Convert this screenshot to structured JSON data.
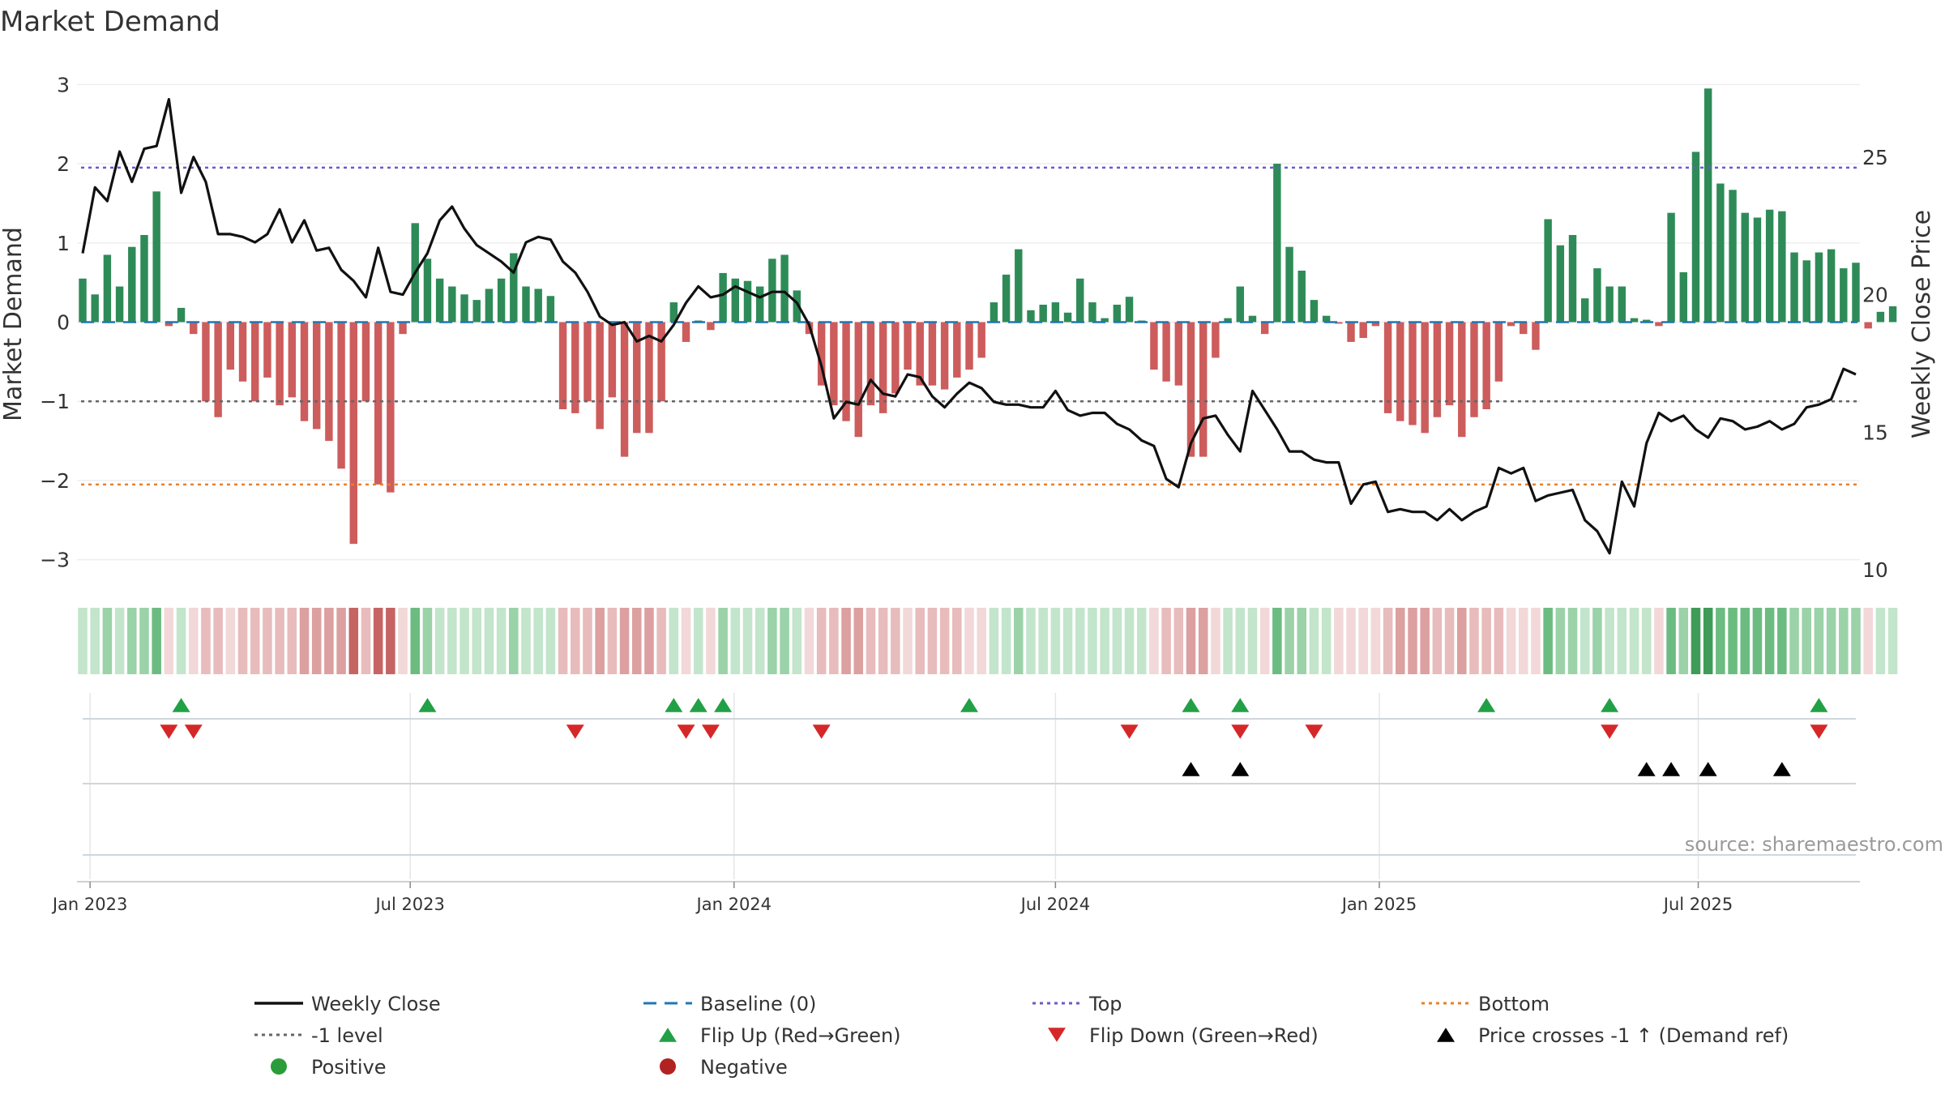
{
  "chart_data": {
    "type": "bar",
    "title": "Market Demand",
    "ylabel": "Market Demand",
    "y2label": "Weekly Close Price",
    "ylim": [
      -3.3,
      3.3
    ],
    "y2lim": [
      9.5,
      28.5
    ],
    "yticks": [
      3,
      2,
      1,
      0,
      -1,
      -2,
      -3
    ],
    "y2ticks": [
      25,
      20,
      15,
      10
    ],
    "ytick_labels": [
      "3",
      "2",
      "1",
      "0",
      "−1",
      "−2",
      "−3"
    ],
    "y2tick_labels": [
      "25",
      "20",
      "15",
      "10"
    ],
    "x_start_week": 0,
    "x_end_week": 144,
    "x_tick_labels": [
      {
        "label": "Jan 2023",
        "week": 0.6
      },
      {
        "label": "Jul 2023",
        "week": 26.6
      },
      {
        "label": "Jan 2024",
        "week": 52.9
      },
      {
        "label": "Jul 2024",
        "week": 79
      },
      {
        "label": "Jan 2025",
        "week": 105.3
      },
      {
        "label": "Jul 2025",
        "week": 131.2
      }
    ],
    "reference_lines": {
      "top": 1.95,
      "baseline": 0,
      "minus1": -1,
      "bottom": -2.05
    },
    "demand": [
      0.55,
      0.35,
      0.85,
      0.45,
      0.95,
      1.1,
      1.65,
      -0.05,
      0.18,
      -0.15,
      -1.0,
      -1.2,
      -0.6,
      -0.75,
      -1.0,
      -0.7,
      -1.05,
      -0.95,
      -1.25,
      -1.35,
      -1.5,
      -1.85,
      -2.8,
      -1.0,
      -2.05,
      -2.15,
      -0.15,
      1.25,
      0.8,
      0.55,
      0.45,
      0.35,
      0.28,
      0.42,
      0.55,
      0.87,
      0.45,
      0.42,
      0.33,
      -1.1,
      -1.15,
      -1.0,
      -1.35,
      -0.95,
      -1.7,
      -1.4,
      -1.4,
      -1.0,
      0.25,
      -0.25,
      0.02,
      -0.1,
      0.62,
      0.55,
      0.52,
      0.45,
      0.8,
      0.85,
      0.4,
      -0.15,
      -0.8,
      -1.05,
      -1.25,
      -1.45,
      -1.05,
      -1.15,
      -0.9,
      -0.6,
      -0.8,
      -0.8,
      -0.85,
      -0.7,
      -0.6,
      -0.45,
      0.25,
      0.6,
      0.92,
      0.15,
      0.22,
      0.25,
      0.12,
      0.55,
      0.25,
      0.05,
      0.22,
      0.32,
      0.02,
      -0.6,
      -0.75,
      -0.8,
      -1.7,
      -1.7,
      -0.45,
      0.05,
      0.45,
      0.08,
      -0.15,
      2.0,
      0.95,
      0.65,
      0.28,
      0.08,
      -0.02,
      -0.25,
      -0.2,
      -0.05,
      -1.15,
      -1.25,
      -1.3,
      -1.4,
      -1.2,
      -1.05,
      -1.45,
      -1.2,
      -1.1,
      -0.75,
      -0.05,
      -0.15,
      -0.35,
      1.3,
      0.97,
      1.1,
      0.3,
      0.68,
      0.45,
      0.45,
      0.05,
      0.03,
      -0.05,
      1.38,
      0.63,
      2.15,
      2.95,
      1.75,
      1.67,
      1.38,
      1.32,
      1.42,
      1.4,
      0.88,
      0.78,
      0.88,
      0.92,
      0.68,
      0.75,
      -0.08,
      0.13,
      0.2
    ],
    "series": [
      {
        "name": "Weekly Close",
        "axis": "right",
        "values": [
          21.5,
          23.9,
          23.4,
          25.2,
          24.1,
          25.3,
          25.4,
          27.1,
          23.7,
          25.0,
          24.1,
          22.2,
          22.2,
          22.1,
          21.9,
          22.2,
          23.1,
          21.9,
          22.7,
          21.6,
          21.7,
          20.9,
          20.5,
          19.9,
          21.7,
          20.1,
          20.0,
          20.8,
          21.5,
          22.7,
          23.2,
          22.4,
          21.8,
          21.5,
          21.2,
          20.8,
          21.9,
          22.1,
          22.0,
          21.2,
          20.8,
          20.1,
          19.2,
          18.9,
          19.0,
          18.3,
          18.5,
          18.3,
          18.9,
          19.7,
          20.3,
          19.9,
          20.0,
          20.3,
          20.1,
          19.9,
          20.1,
          20.1,
          19.7,
          18.9,
          17.4,
          15.5,
          16.1,
          16.0,
          16.9,
          16.4,
          16.3,
          17.1,
          17.0,
          16.3,
          15.9,
          16.4,
          16.8,
          16.6,
          16.1,
          16.0,
          16.0,
          15.9,
          15.9,
          16.5,
          15.8,
          15.6,
          15.7,
          15.7,
          15.3,
          15.1,
          14.7,
          14.5,
          13.3,
          13.0,
          14.6,
          15.5,
          15.6,
          14.9,
          14.3,
          16.5,
          15.8,
          15.1,
          14.3,
          14.3,
          14.0,
          13.9,
          13.9,
          12.4,
          13.1,
          13.2,
          12.1,
          12.2,
          12.1,
          12.1,
          11.8,
          12.2,
          11.8,
          12.1,
          12.3,
          13.7,
          13.5,
          13.7,
          12.5,
          12.7,
          12.8,
          12.9,
          11.8,
          11.4,
          10.6,
          13.2,
          12.3,
          14.6,
          15.7,
          15.4,
          15.6,
          15.1,
          14.8,
          15.5,
          15.4,
          15.1,
          15.2,
          15.4,
          15.1,
          15.3,
          15.9,
          16.0,
          16.2,
          17.3,
          17.1
        ]
      }
    ],
    "flip_up_weeks": [
      8,
      28,
      48,
      50,
      52,
      72,
      90,
      94,
      114,
      124,
      141
    ],
    "flip_down_weeks": [
      7,
      9,
      40,
      49,
      51,
      60,
      85,
      94,
      100,
      124,
      141
    ],
    "price_cross_weeks": [
      90,
      94,
      127,
      129,
      132,
      138
    ],
    "colors": {
      "positive_bar": "#2e8b57",
      "negative_bar": "#cd5c5c",
      "price_line": "#111111",
      "baseline": "#1f77b4",
      "top": "#6a5acd",
      "bottom": "#e8802a",
      "minus1": "#666666",
      "flip_up": "#22a046",
      "flip_down": "#d62728",
      "cross": "#000000",
      "positive_dot": "#2a9d3a",
      "negative_dot": "#b22222"
    },
    "source": "source: sharemaestro.com",
    "legend": [
      {
        "label": "Weekly Close",
        "symbol": "solid-line",
        "color": "#111111"
      },
      {
        "label": "Baseline (0)",
        "symbol": "dash-line",
        "color": "#1f77b4"
      },
      {
        "label": "Top",
        "symbol": "dot-line",
        "color": "#6a5acd"
      },
      {
        "label": "Bottom",
        "symbol": "dot-line",
        "color": "#e8802a"
      },
      {
        "label": "-1 level",
        "symbol": "dot-line",
        "color": "#666666"
      },
      {
        "label": "Flip Up (Red→Green)",
        "symbol": "triangle-up",
        "color": "#22a046"
      },
      {
        "label": "Flip Down (Green→Red)",
        "symbol": "triangle-down",
        "color": "#d62728"
      },
      {
        "label": "Price crosses -1 ↑ (Demand ref)",
        "symbol": "triangle-up",
        "color": "#000000"
      },
      {
        "label": "Positive",
        "symbol": "dot",
        "color": "#2a9d3a"
      },
      {
        "label": "Negative",
        "symbol": "dot",
        "color": "#b22222"
      }
    ]
  }
}
